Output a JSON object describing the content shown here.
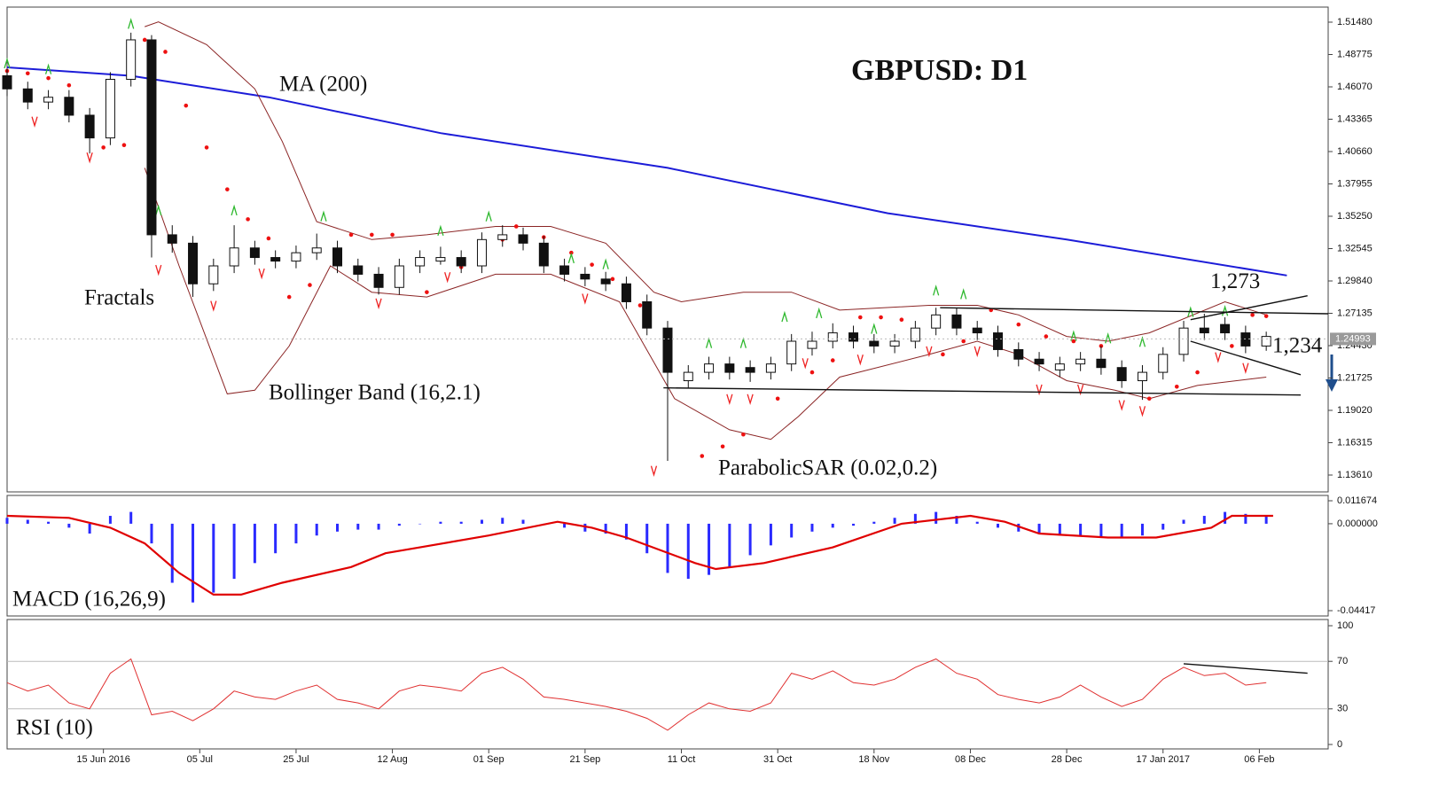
{
  "chart_data": [
    {
      "type": "candlestick",
      "title": "GBPUSD: D1",
      "x": [
        0,
        3,
        6,
        9,
        12,
        15,
        18,
        21,
        24,
        27,
        30,
        33,
        36,
        39,
        42,
        45,
        48,
        51,
        54,
        57,
        60,
        63,
        66,
        69,
        72,
        75,
        78,
        81,
        84,
        87,
        90,
        93,
        96,
        99,
        102,
        105,
        108,
        111,
        114,
        117,
        120,
        123,
        126,
        129,
        132,
        135,
        138,
        141,
        144,
        147,
        150,
        153,
        156,
        159,
        162,
        165,
        168,
        171,
        174,
        177,
        180,
        183
      ],
      "open": [
        1.47,
        1.459,
        1.448,
        1.452,
        1.437,
        1.418,
        1.467,
        1.5,
        1.337,
        1.33,
        1.296,
        1.311,
        1.326,
        1.318,
        1.315,
        1.322,
        1.326,
        1.311,
        1.304,
        1.293,
        1.311,
        1.315,
        1.318,
        1.311,
        1.333,
        1.337,
        1.33,
        1.311,
        1.304,
        1.3,
        1.296,
        1.281,
        1.259,
        1.215,
        1.222,
        1.229,
        1.226,
        1.222,
        1.229,
        1.242,
        1.248,
        1.255,
        1.248,
        1.244,
        1.248,
        1.259,
        1.27,
        1.259,
        1.255,
        1.241,
        1.233,
        1.224,
        1.229,
        1.233,
        1.226,
        1.215,
        1.222,
        1.237,
        1.259,
        1.262,
        1.255,
        1.244
      ],
      "high": [
        1.476,
        1.465,
        1.458,
        1.458,
        1.443,
        1.473,
        1.506,
        1.504,
        1.345,
        1.336,
        1.317,
        1.345,
        1.332,
        1.324,
        1.328,
        1.338,
        1.332,
        1.317,
        1.31,
        1.317,
        1.324,
        1.327,
        1.324,
        1.339,
        1.345,
        1.343,
        1.336,
        1.317,
        1.31,
        1.306,
        1.302,
        1.287,
        1.265,
        1.228,
        1.235,
        1.235,
        1.232,
        1.235,
        1.254,
        1.256,
        1.263,
        1.261,
        1.254,
        1.254,
        1.265,
        1.276,
        1.276,
        1.265,
        1.261,
        1.247,
        1.239,
        1.235,
        1.239,
        1.244,
        1.232,
        1.228,
        1.243,
        1.265,
        1.271,
        1.268,
        1.261,
        1.256
      ],
      "low": [
        1.453,
        1.442,
        1.442,
        1.431,
        1.405,
        1.412,
        1.461,
        1.318,
        1.322,
        1.285,
        1.29,
        1.305,
        1.312,
        1.309,
        1.309,
        1.316,
        1.305,
        1.298,
        1.287,
        1.287,
        1.305,
        1.312,
        1.305,
        1.305,
        1.327,
        1.324,
        1.305,
        1.298,
        1.294,
        1.29,
        1.275,
        1.253,
        1.148,
        1.209,
        1.216,
        1.216,
        1.214,
        1.216,
        1.223,
        1.236,
        1.242,
        1.242,
        1.238,
        1.238,
        1.242,
        1.253,
        1.253,
        1.249,
        1.235,
        1.227,
        1.223,
        1.218,
        1.223,
        1.22,
        1.209,
        1.199,
        1.216,
        1.231,
        1.249,
        1.249,
        1.238,
        1.24
      ],
      "close": [
        1.459,
        1.448,
        1.452,
        1.437,
        1.418,
        1.467,
        1.5,
        1.337,
        1.33,
        1.296,
        1.311,
        1.326,
        1.318,
        1.315,
        1.322,
        1.326,
        1.311,
        1.304,
        1.293,
        1.311,
        1.318,
        1.318,
        1.311,
        1.333,
        1.337,
        1.33,
        1.311,
        1.304,
        1.3,
        1.296,
        1.281,
        1.259,
        1.222,
        1.222,
        1.229,
        1.222,
        1.222,
        1.229,
        1.248,
        1.248,
        1.255,
        1.248,
        1.244,
        1.248,
        1.259,
        1.27,
        1.259,
        1.255,
        1.241,
        1.233,
        1.229,
        1.229,
        1.233,
        1.226,
        1.215,
        1.222,
        1.237,
        1.259,
        1.255,
        1.255,
        1.244,
        1.252
      ],
      "ylim": [
        1.1361,
        1.5148
      ],
      "yticks": [
        {
          "value": 1.5148,
          "label": "1.51480"
        },
        1.48775,
        {
          "value": 1.4607,
          "label": "1.46070"
        },
        1.43365,
        {
          "value": 1.4066,
          "label": "1.40660"
        },
        1.37955,
        {
          "value": 1.3525,
          "label": "1.35250"
        },
        1.32545,
        {
          "value": 1.2984,
          "label": "1.29840"
        },
        1.27135,
        {
          "value": 1.2443,
          "label": "1.24430"
        },
        1.21725,
        {
          "value": 1.1902,
          "label": "1.19020"
        },
        1.16315,
        {
          "value": 1.1361,
          "label": "1.13610"
        }
      ],
      "last_price": 1.24993,
      "overlays": [
        {
          "name": "MA (200)",
          "type": "line",
          "color": "#1c1cd8",
          "x": [
            0,
            18,
            38,
            63,
            96,
            128,
            154,
            186
          ],
          "values": [
            1.477,
            1.47,
            1.452,
            1.422,
            1.393,
            1.355,
            1.333,
            1.303
          ]
        },
        {
          "name": "Bollinger Band (16,2.1)",
          "type": "band",
          "color": "#8b2525",
          "upper": {
            "x": [
              20,
              22,
              29,
              36,
              40,
              45,
              53,
              61,
              71,
              79,
              87,
              94,
              98,
              107,
              114,
              121,
              134,
              141,
              147,
              154,
              160,
              166,
              177,
              183
            ],
            "values": [
              1.511,
              1.515,
              1.496,
              1.459,
              1.415,
              1.348,
              1.333,
              1.337,
              1.344,
              1.344,
              1.33,
              1.289,
              1.281,
              1.289,
              1.289,
              1.274,
              1.278,
              1.278,
              1.27,
              1.252,
              1.248,
              1.255,
              1.281,
              1.27
            ]
          },
          "lower": {
            "x": [
              20,
              25,
              32,
              36,
              41,
              47,
              53,
              61,
              71,
              79,
              89,
              97,
              105,
              111,
              115,
              121,
              134,
              141,
              147,
              154,
              161,
              166,
              173,
              183
            ],
            "values": [
              1.393,
              1.311,
              1.204,
              1.207,
              1.244,
              1.311,
              1.289,
              1.285,
              1.304,
              1.304,
              1.281,
              1.2,
              1.174,
              1.166,
              1.185,
              1.218,
              1.237,
              1.248,
              1.237,
              1.215,
              1.207,
              1.2,
              1.211,
              1.218
            ]
          }
        },
        {
          "name": "ParabolicSAR (0.02,0.2)",
          "type": "dots",
          "color": "#ee1111",
          "x": [
            0,
            3,
            6,
            9,
            14,
            17,
            20,
            23,
            26,
            29,
            32,
            35,
            38,
            41,
            44,
            50,
            53,
            56,
            61,
            66,
            72,
            74,
            78,
            82,
            85,
            88,
            92,
            96,
            101,
            104,
            107,
            112,
            117,
            120,
            124,
            127,
            130,
            136,
            139,
            143,
            147,
            151,
            155,
            159,
            166,
            170,
            173,
            178,
            181,
            183
          ],
          "values": [
            1.474,
            1.472,
            1.468,
            1.462,
            1.41,
            1.412,
            1.5,
            1.49,
            1.445,
            1.41,
            1.375,
            1.35,
            1.334,
            1.285,
            1.295,
            1.337,
            1.337,
            1.337,
            1.289,
            1.31,
            1.333,
            1.344,
            1.335,
            1.322,
            1.312,
            1.3,
            1.278,
            1.245,
            1.152,
            1.16,
            1.17,
            1.2,
            1.222,
            1.232,
            1.268,
            1.268,
            1.266,
            1.237,
            1.248,
            1.274,
            1.262,
            1.252,
            1.248,
            1.244,
            1.2,
            1.21,
            1.222,
            1.244,
            1.27,
            1.269
          ]
        },
        {
          "name": "Fractals",
          "type": "fractals",
          "up": {
            "color": "#2eb82e",
            "x": [
              0,
              6,
              18,
              22,
              33,
              46,
              63,
              70,
              82,
              87,
              102,
              107,
              113,
              118,
              126,
              135,
              139,
              155,
              160,
              165,
              172,
              177
            ],
            "values": [
              1.48,
              1.475,
              1.513,
              1.357,
              1.357,
              1.352,
              1.34,
              1.352,
              1.317,
              1.312,
              1.246,
              1.246,
              1.268,
              1.271,
              1.258,
              1.29,
              1.287,
              1.252,
              1.25,
              1.247,
              1.272,
              1.273
            ]
          },
          "down": {
            "color": "#ee2222",
            "x": [
              4,
              12,
              22,
              30,
              37,
              54,
              64,
              84,
              94,
              105,
              108,
              116,
              124,
              134,
              141,
              150,
              156,
              162,
              165,
              176,
              180
            ],
            "values": [
              1.432,
              1.402,
              1.308,
              1.278,
              1.305,
              1.28,
              1.302,
              1.284,
              1.14,
              1.2,
              1.2,
              1.23,
              1.233,
              1.24,
              1.24,
              1.208,
              1.208,
              1.195,
              1.19,
              1.235,
              1.226
            ]
          }
        }
      ],
      "trend_lines": [
        {
          "x": [
            95.4,
            188
          ],
          "values": [
            1.209,
            1.203
          ]
        },
        {
          "x": [
            135.6,
            192
          ],
          "values": [
            1.276,
            1.271
          ]
        },
        {
          "x": [
            172,
            189
          ],
          "values": [
            1.266,
            1.286
          ]
        },
        {
          "x": [
            172,
            188
          ],
          "values": [
            1.248,
            1.22
          ]
        }
      ],
      "level_labels": [
        {
          "value": 1.273,
          "label": "1,273"
        },
        {
          "value": 1.234,
          "label": "1,234"
        }
      ]
    },
    {
      "type": "macd",
      "title": "MACD (16,26,9)",
      "x": [
        0,
        3,
        6,
        9,
        12,
        15,
        18,
        21,
        24,
        27,
        30,
        33,
        36,
        39,
        42,
        45,
        48,
        51,
        54,
        57,
        60,
        63,
        66,
        69,
        72,
        75,
        78,
        81,
        84,
        87,
        90,
        93,
        96,
        99,
        102,
        105,
        108,
        111,
        114,
        117,
        120,
        123,
        126,
        129,
        132,
        135,
        138,
        141,
        144,
        147,
        150,
        153,
        156,
        159,
        162,
        165,
        168,
        171,
        174,
        177,
        180,
        183
      ],
      "histogram": {
        "color": "#2a2aff",
        "values": [
          0.003,
          0.002,
          0.001,
          -0.002,
          -0.005,
          0.004,
          0.006,
          -0.01,
          -0.03,
          -0.04,
          -0.035,
          -0.028,
          -0.02,
          -0.015,
          -0.01,
          -0.006,
          -0.004,
          -0.003,
          -0.003,
          -0.001,
          0.0,
          0.001,
          0.001,
          0.002,
          0.003,
          0.002,
          0.0,
          -0.002,
          -0.004,
          -0.005,
          -0.008,
          -0.015,
          -0.025,
          -0.028,
          -0.026,
          -0.022,
          -0.016,
          -0.011,
          -0.007,
          -0.004,
          -0.002,
          -0.001,
          0.001,
          0.003,
          0.005,
          0.006,
          0.004,
          0.001,
          -0.002,
          -0.004,
          -0.005,
          -0.006,
          -0.006,
          -0.007,
          -0.007,
          -0.006,
          -0.003,
          0.002,
          0.004,
          0.006,
          0.005,
          0.004
        ]
      },
      "signal": {
        "color": "#e00000",
        "x": [
          0,
          9,
          15,
          20,
          25,
          30,
          34,
          40,
          50,
          55,
          60,
          70,
          80,
          85,
          90,
          100,
          103,
          110,
          120,
          130,
          140,
          145,
          150,
          160,
          167,
          175,
          178,
          184
        ],
        "values": [
          0.004,
          0.003,
          -0.002,
          -0.01,
          -0.025,
          -0.036,
          -0.036,
          -0.03,
          -0.022,
          -0.015,
          -0.012,
          -0.006,
          0.001,
          -0.002,
          -0.007,
          -0.02,
          -0.023,
          -0.02,
          -0.012,
          0.0,
          0.004,
          0.001,
          -0.005,
          -0.007,
          -0.007,
          -0.002,
          0.004,
          0.004
        ]
      },
      "ylim": [
        -0.04417,
        0.011674
      ],
      "yticks": [
        0.011674,
        {
          "value": 0,
          "label": "0.000000"
        },
        -0.04417
      ]
    },
    {
      "type": "rsi",
      "title": "RSI (10)",
      "color": "#e03030",
      "x": [
        0,
        3,
        6,
        9,
        12,
        15,
        18,
        21,
        24,
        27,
        30,
        33,
        36,
        39,
        42,
        45,
        48,
        51,
        54,
        57,
        60,
        63,
        66,
        69,
        72,
        75,
        78,
        81,
        84,
        87,
        90,
        93,
        96,
        99,
        102,
        105,
        108,
        111,
        114,
        117,
        120,
        123,
        126,
        129,
        132,
        135,
        138,
        141,
        144,
        147,
        150,
        153,
        156,
        159,
        162,
        165,
        168,
        171,
        174,
        177,
        180,
        183
      ],
      "values": [
        52,
        45,
        50,
        35,
        30,
        60,
        72,
        25,
        28,
        20,
        30,
        45,
        40,
        38,
        45,
        50,
        38,
        35,
        30,
        45,
        50,
        48,
        45,
        60,
        65,
        55,
        40,
        38,
        35,
        32,
        28,
        22,
        12,
        25,
        35,
        30,
        28,
        35,
        60,
        55,
        62,
        52,
        50,
        55,
        65,
        72,
        60,
        55,
        42,
        38,
        35,
        40,
        50,
        40,
        32,
        38,
        55,
        65,
        58,
        60,
        50,
        52
      ],
      "ylim": [
        0,
        100
      ],
      "yticks": [
        0,
        30,
        70,
        100
      ],
      "grid": [
        30,
        70
      ],
      "trend_lines": [
        {
          "x": [
            171,
            189
          ],
          "values": [
            68,
            60
          ]
        }
      ],
      "xlim": [
        0,
        192
      ],
      "xticks": [
        {
          "value": 14,
          "label": "15 Jun 2016"
        },
        {
          "value": 28,
          "label": "05 Jul"
        },
        {
          "value": 42,
          "label": "25 Jul"
        },
        {
          "value": 56,
          "label": "12 Aug"
        },
        {
          "value": 70,
          "label": "01 Sep"
        },
        {
          "value": 84,
          "label": "21 Sep"
        },
        {
          "value": 98,
          "label": "11 Oct"
        },
        {
          "value": 112,
          "label": "31 Oct"
        },
        {
          "value": 126,
          "label": "18 Nov"
        },
        {
          "value": 140,
          "label": "08 Dec"
        },
        {
          "value": 154,
          "label": "28 Dec"
        },
        {
          "value": 168,
          "label": "17 Jan 2017"
        },
        {
          "value": 182,
          "label": "06 Feb"
        }
      ]
    }
  ]
}
